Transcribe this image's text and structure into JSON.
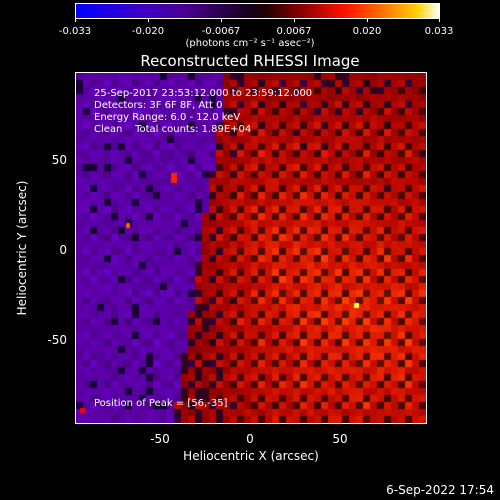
{
  "colorbar": {
    "tick_labels": [
      "-0.033",
      "-0.020",
      "-0.0067",
      "0.0067",
      "0.020",
      "0.033"
    ],
    "units": "(photons cm⁻² s⁻¹ asec⁻²)"
  },
  "title": "Reconstructed RHESSI Image",
  "info": {
    "time_range": "25-Sep-2017 23:53:12.000 to 23:59:12.000",
    "detectors": "Detectors: 3F 6F 8F, Att 0",
    "energy": "Energy Range: 6.0 - 12.0 keV",
    "method": "Clean    Total counts: 1.89E+04"
  },
  "peak": "Position of Peak = [56,-35]",
  "x_axis": {
    "label": "Heliocentric X (arcsec)",
    "ticks": [
      "-50",
      "0",
      "50"
    ]
  },
  "y_axis": {
    "label": "Heliocentric Y (arcsec)",
    "ticks": [
      "50",
      "0",
      "-50"
    ]
  },
  "footer_date": "6-Sep-2022 17:54"
}
